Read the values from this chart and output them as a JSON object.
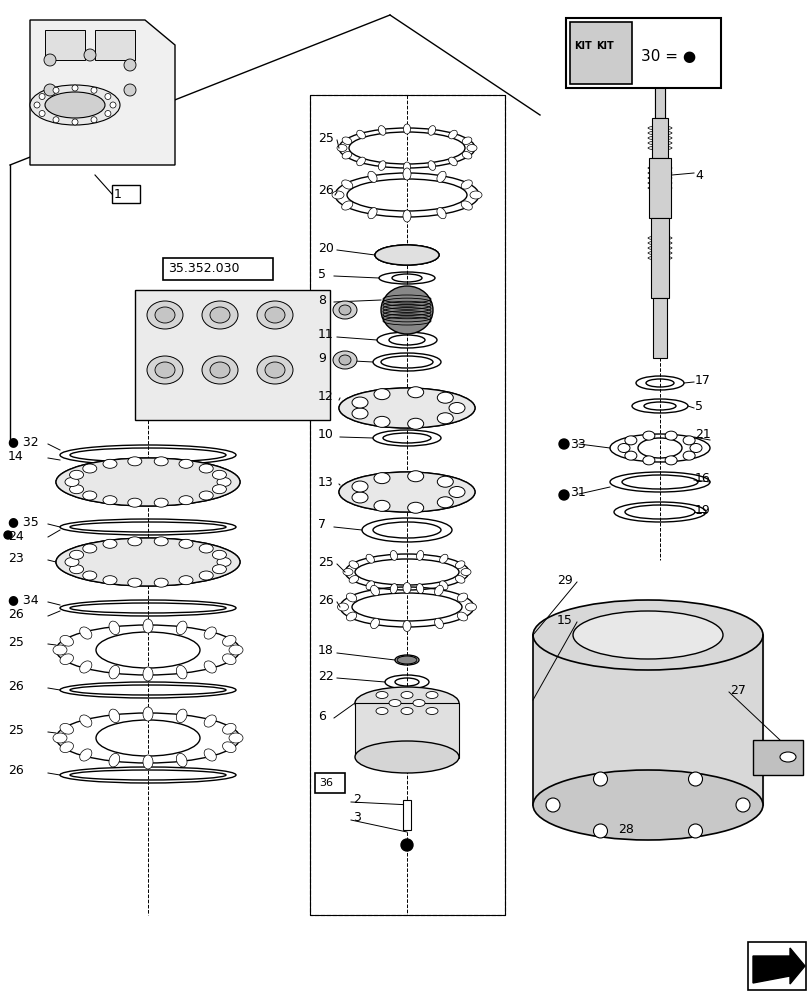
{
  "background_color": "#ffffff",
  "kit_label": "30 = ●",
  "ref_label": "35.352.030"
}
